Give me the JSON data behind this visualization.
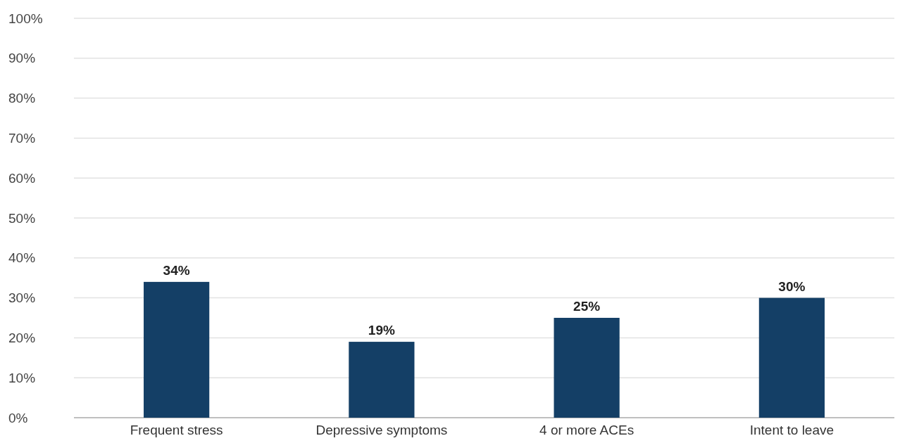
{
  "chart_data": {
    "type": "bar",
    "categories": [
      "Frequent stress",
      "Depressive symptoms",
      "4 or more ACEs",
      "Intent to leave"
    ],
    "values": [
      34,
      19,
      25,
      30
    ],
    "color": "#143f66",
    "value_labels": [
      "34%",
      "19%",
      "25%",
      "30%"
    ],
    "ylim": [
      0,
      100
    ],
    "yticks": [
      {
        "value": 0,
        "label": "0%"
      },
      {
        "value": 10,
        "label": "10%"
      },
      {
        "value": 20,
        "label": "20%"
      },
      {
        "value": 30,
        "label": "30%"
      },
      {
        "value": 40,
        "label": "40%"
      },
      {
        "value": 50,
        "label": "50%"
      },
      {
        "value": 60,
        "label": "60%"
      },
      {
        "value": 70,
        "label": "70%"
      },
      {
        "value": 80,
        "label": "80%"
      },
      {
        "value": 90,
        "label": "90%"
      },
      {
        "value": 100,
        "label": "100%"
      }
    ],
    "grid": "y"
  }
}
